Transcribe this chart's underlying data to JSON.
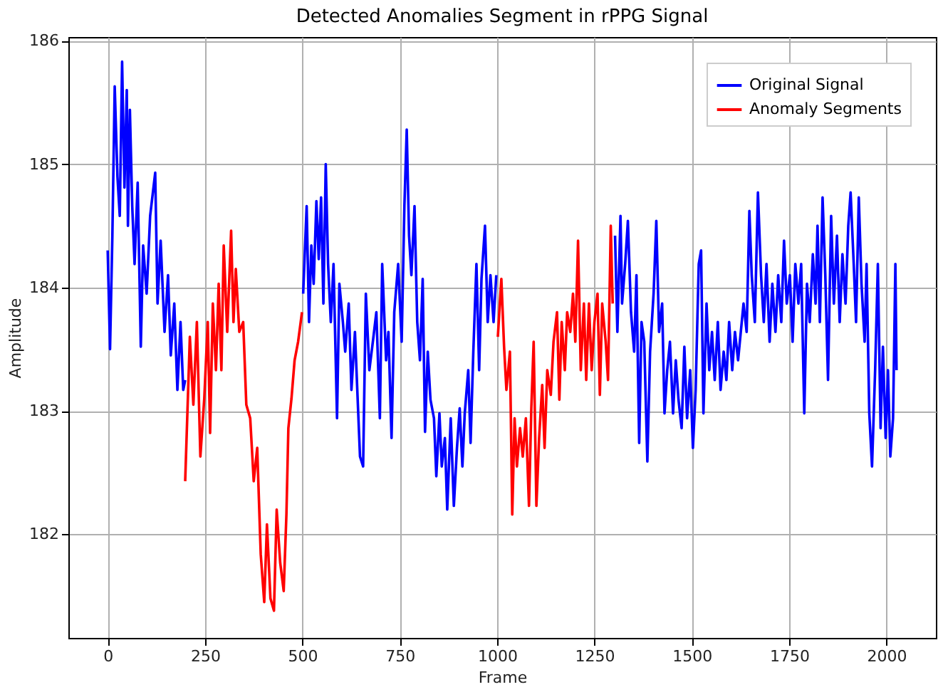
{
  "chart_data": {
    "type": "line",
    "title": "Detected Anomalies Segment in rPPG Signal",
    "xlabel": "Frame",
    "ylabel": "Amplitude",
    "xlim": [
      -101,
      2127
    ],
    "ylim": [
      181.16,
      186.03
    ],
    "xticks": [
      0,
      250,
      500,
      750,
      1000,
      1250,
      1500,
      1750,
      2000
    ],
    "yticks": [
      182,
      183,
      184,
      185,
      186
    ],
    "grid": true,
    "legend": "top right",
    "line_style": "solid",
    "marker": "none",
    "series": [
      {
        "name": "Original Signal",
        "color": "#0000ff",
        "x": [
          0,
          6,
          12,
          18,
          25,
          31,
          37,
          43,
          49,
          52,
          57,
          63,
          69,
          77,
          85,
          91,
          100,
          109,
          122,
          128,
          136,
          146,
          155,
          162,
          171,
          179,
          187,
          194,
          199,
          350,
          502,
          511,
          517,
          523,
          529,
          536,
          542,
          548,
          554,
          560,
          566,
          573,
          580,
          589,
          595,
          604,
          610,
          619,
          626,
          635,
          641,
          648,
          656,
          663,
          672,
          681,
          690,
          699,
          705,
          715,
          721,
          729,
          736,
          746,
          755,
          762,
          768,
          774,
          780,
          788,
          795,
          802,
          809,
          815,
          822,
          829,
          838,
          844,
          852,
          858,
          866,
          872,
          881,
          889,
          897,
          904,
          911,
          917,
          926,
          932,
          939,
          947,
          954,
          960,
          969,
          976,
          983,
          991,
          998,
          1150,
          1303,
          1309,
          1317,
          1321,
          1329,
          1336,
          1344,
          1352,
          1358,
          1365,
          1371,
          1378,
          1386,
          1393,
          1402,
          1409,
          1416,
          1424,
          1430,
          1437,
          1444,
          1452,
          1459,
          1466,
          1474,
          1481,
          1488,
          1496,
          1503,
          1510,
          1518,
          1524,
          1530,
          1538,
          1545,
          1552,
          1559,
          1567,
          1574,
          1582,
          1589,
          1596,
          1604,
          1611,
          1619,
          1626,
          1633,
          1641,
          1648,
          1654,
          1662,
          1670,
          1678,
          1685,
          1692,
          1700,
          1707,
          1715,
          1722,
          1730,
          1737,
          1744,
          1752,
          1759,
          1766,
          1774,
          1781,
          1789,
          1796,
          1803,
          1811,
          1818,
          1823,
          1829,
          1836,
          1843,
          1850,
          1858,
          1865,
          1873,
          1880,
          1887,
          1895,
          1902,
          1908,
          1916,
          1922,
          1929,
          1936,
          1944,
          1949,
          1956,
          1963,
          1971,
          1978,
          1985,
          1991,
          1998,
          2004,
          2010,
          2017,
          2023,
          2026
        ],
        "values": [
          184.3,
          183.5,
          184.42,
          185.63,
          184.9,
          184.58,
          185.83,
          184.81,
          185.6,
          184.5,
          185.44,
          184.66,
          184.19,
          184.85,
          183.52,
          184.34,
          183.95,
          184.58,
          184.93,
          183.87,
          184.38,
          183.64,
          184.1,
          183.45,
          183.87,
          183.17,
          183.72,
          183.17,
          183.25,
          null,
          183.95,
          184.66,
          183.72,
          184.34,
          184.03,
          184.7,
          184.23,
          184.73,
          183.87,
          185.0,
          184.19,
          183.72,
          184.19,
          182.94,
          184.03,
          183.72,
          183.48,
          183.87,
          183.17,
          183.64,
          183.17,
          182.63,
          182.55,
          183.95,
          183.33,
          183.56,
          183.8,
          182.94,
          184.19,
          183.41,
          183.64,
          182.78,
          183.8,
          184.19,
          183.56,
          184.66,
          185.28,
          184.42,
          184.1,
          184.66,
          183.72,
          183.41,
          184.07,
          182.83,
          183.48,
          183.09,
          182.94,
          182.47,
          182.98,
          182.55,
          182.78,
          182.2,
          182.94,
          182.23,
          182.7,
          183.02,
          182.55,
          182.98,
          183.33,
          182.74,
          183.48,
          184.19,
          183.33,
          184.07,
          184.5,
          183.72,
          184.1,
          183.72,
          184.1,
          null,
          184.42,
          183.64,
          184.58,
          183.87,
          184.19,
          184.54,
          183.8,
          183.48,
          184.1,
          182.74,
          183.72,
          183.56,
          182.59,
          183.48,
          183.95,
          184.54,
          183.64,
          183.87,
          182.98,
          183.33,
          183.56,
          182.98,
          183.41,
          183.09,
          182.86,
          183.52,
          182.94,
          183.33,
          182.7,
          183.17,
          184.19,
          184.3,
          182.98,
          183.87,
          183.33,
          183.64,
          183.25,
          183.72,
          183.17,
          183.48,
          183.25,
          183.72,
          183.33,
          183.64,
          183.41,
          183.64,
          183.87,
          183.64,
          184.62,
          184.1,
          183.72,
          184.77,
          184.1,
          183.72,
          184.19,
          183.56,
          184.03,
          183.64,
          184.1,
          183.72,
          184.38,
          183.87,
          184.1,
          183.56,
          184.19,
          183.87,
          184.19,
          182.98,
          184.03,
          183.72,
          184.27,
          183.87,
          184.5,
          183.72,
          184.73,
          184.1,
          183.25,
          184.58,
          183.87,
          184.42,
          183.72,
          184.27,
          183.87,
          184.5,
          184.77,
          184.19,
          183.72,
          184.73,
          184.03,
          183.56,
          184.19,
          182.98,
          182.55,
          183.33,
          184.19,
          182.86,
          183.52,
          182.78,
          183.33,
          182.63,
          182.94,
          184.19,
          183.33
        ]
      },
      {
        "name": "Anomaly Segments",
        "color": "#ff0000",
        "x": [
          199,
          211,
          220,
          229,
          238,
          248,
          257,
          263,
          270,
          278,
          285,
          292,
          298,
          307,
          317,
          323,
          329,
          338,
          348,
          356,
          366,
          375,
          384,
          393,
          402,
          409,
          418,
          427,
          434,
          443,
          452,
          459,
          464,
          472,
          480,
          489,
          499,
          750,
          1002,
          1011,
          1018,
          1024,
          1033,
          1039,
          1045,
          1051,
          1059,
          1066,
          1074,
          1082,
          1088,
          1094,
          1101,
          1108,
          1116,
          1122,
          1129,
          1138,
          1145,
          1154,
          1160,
          1166,
          1174,
          1180,
          1188,
          1195,
          1201,
          1208,
          1215,
          1223,
          1229,
          1236,
          1243,
          1250,
          1258,
          1264,
          1270,
          1279,
          1285,
          1292,
          1297
        ],
        "values": [
          182.43,
          183.6,
          183.05,
          183.72,
          182.63,
          183.1,
          183.72,
          182.82,
          183.87,
          183.33,
          184.03,
          183.33,
          184.34,
          183.64,
          184.46,
          183.72,
          184.15,
          183.64,
          183.72,
          183.05,
          182.94,
          182.43,
          182.7,
          181.84,
          181.45,
          182.08,
          181.48,
          181.38,
          182.2,
          181.77,
          181.54,
          182.16,
          182.86,
          183.1,
          183.41,
          183.56,
          183.8,
          null,
          183.6,
          184.07,
          183.52,
          183.17,
          183.48,
          182.16,
          182.94,
          182.55,
          182.86,
          182.63,
          182.94,
          182.23,
          183.02,
          183.56,
          182.23,
          182.78,
          183.21,
          182.7,
          183.33,
          183.13,
          183.56,
          183.8,
          183.09,
          183.72,
          183.33,
          183.8,
          183.64,
          183.95,
          183.56,
          184.38,
          183.33,
          183.87,
          183.25,
          183.87,
          183.33,
          183.72,
          183.95,
          183.13,
          183.87,
          183.56,
          183.25,
          184.5,
          183.87
        ]
      }
    ]
  }
}
